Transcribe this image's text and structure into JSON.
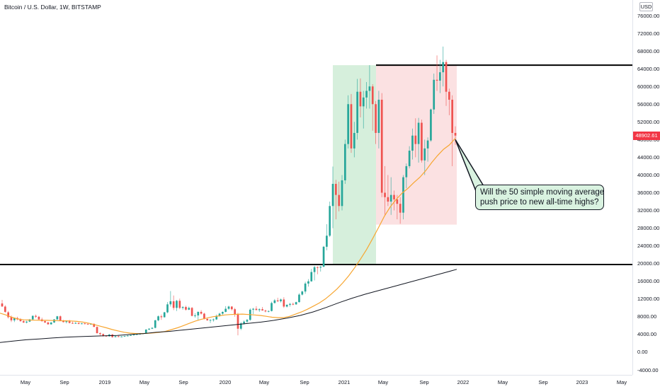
{
  "header": {
    "title": "Bitcoin / U.S. Dollar, 1W, BITSTAMP",
    "currency": "USD"
  },
  "chart_data": {
    "type": "candlestick",
    "title": "Bitcoin / U.S. Dollar, 1W, BITSTAMP",
    "ylim": [
      -4000,
      76000
    ],
    "y_ticks": [
      "76000.00",
      "72000.00",
      "68000.00",
      "64000.00",
      "60000.00",
      "56000.00",
      "52000.00",
      "48000.00",
      "44000.00",
      "40000.00",
      "36000.00",
      "32000.00",
      "28000.00",
      "24000.00",
      "20000.00",
      "16000.00",
      "12000.00",
      "8000.00",
      "4000.00",
      "0.00",
      "-4000.00"
    ],
    "x_ticks": [
      "May",
      "Sep",
      "2019",
      "May",
      "Sep",
      "2020",
      "May",
      "Sep",
      "2021",
      "May",
      "Sep",
      "2022",
      "May",
      "Sep",
      "2023",
      "May"
    ],
    "last_price": "48902.61",
    "colors": {
      "up": "#26a69a",
      "down": "#ef5350",
      "sma50": "#f7a631",
      "sma200": "#131722",
      "green_box": "#d6efdc",
      "red_box": "#fbe1e2"
    },
    "horizontal_levels": [
      64800,
      19800
    ],
    "series": [
      {
        "kind": "ohlc",
        "values": [
          [
            11000,
            11800,
            10300,
            10300
          ],
          [
            10300,
            10600,
            8900,
            9100
          ],
          [
            9000,
            9300,
            7600,
            7900
          ],
          [
            7900,
            8300,
            6800,
            7200
          ],
          [
            7200,
            7800,
            6800,
            7700
          ],
          [
            7700,
            8000,
            7200,
            7400
          ],
          [
            7400,
            7700,
            6900,
            7000
          ],
          [
            7000,
            7300,
            6600,
            6700
          ],
          [
            6700,
            7100,
            6500,
            6900
          ],
          [
            6900,
            7500,
            6800,
            7400
          ],
          [
            7400,
            8300,
            7300,
            8200
          ],
          [
            8200,
            8500,
            7700,
            8000
          ],
          [
            8000,
            8200,
            7300,
            7400
          ],
          [
            7400,
            7800,
            6900,
            7000
          ],
          [
            7000,
            7200,
            6600,
            6700
          ],
          [
            6700,
            6900,
            6200,
            6300
          ],
          [
            6300,
            6800,
            6200,
            6700
          ],
          [
            6700,
            7500,
            6600,
            7400
          ],
          [
            7400,
            8200,
            7300,
            8100
          ],
          [
            8100,
            8300,
            7000,
            7100
          ],
          [
            7100,
            7300,
            6700,
            6800
          ],
          [
            6800,
            7200,
            6500,
            7000
          ],
          [
            7000,
            7300,
            6500,
            6600
          ],
          [
            6600,
            6900,
            6400,
            6500
          ],
          [
            6500,
            6800,
            6400,
            6600
          ],
          [
            6600,
            6700,
            6300,
            6400
          ],
          [
            6400,
            6600,
            6300,
            6500
          ],
          [
            6500,
            6600,
            6300,
            6400
          ],
          [
            6400,
            6500,
            6200,
            6300
          ],
          [
            6300,
            6500,
            6200,
            6400
          ],
          [
            6400,
            6500,
            5800,
            5700
          ],
          [
            5700,
            5800,
            4200,
            4300
          ],
          [
            4300,
            4500,
            3600,
            4100
          ],
          [
            4100,
            4200,
            3500,
            3700
          ],
          [
            3700,
            3800,
            3500,
            3600
          ],
          [
            3600,
            4100,
            3500,
            4000
          ],
          [
            4000,
            4100,
            3300,
            3400
          ],
          [
            3400,
            3700,
            3400,
            3600
          ],
          [
            3600,
            3700,
            3400,
            3500
          ],
          [
            3500,
            3600,
            3400,
            3550
          ],
          [
            3550,
            3700,
            3500,
            3650
          ],
          [
            3650,
            3800,
            3600,
            3750
          ],
          [
            3750,
            3900,
            3700,
            3850
          ],
          [
            3850,
            4000,
            3800,
            3950
          ],
          [
            3950,
            4100,
            3900,
            4050
          ],
          [
            4050,
            4200,
            4000,
            4150
          ],
          [
            4150,
            4300,
            4100,
            4250
          ],
          [
            4250,
            5200,
            4200,
            5100
          ],
          [
            5100,
            5400,
            5000,
            5300
          ],
          [
            5300,
            5600,
            5200,
            5500
          ],
          [
            5500,
            7300,
            5400,
            7200
          ],
          [
            7200,
            8300,
            7000,
            8100
          ],
          [
            8100,
            8500,
            7300,
            7900
          ],
          [
            7900,
            9100,
            7800,
            9000
          ],
          [
            9000,
            11300,
            8800,
            10800
          ],
          [
            10800,
            13800,
            10300,
            11500
          ],
          [
            11500,
            12800,
            9500,
            10000
          ],
          [
            10000,
            11800,
            9300,
            11600
          ],
          [
            11600,
            12100,
            9700,
            10000
          ],
          [
            10000,
            10400,
            9600,
            10200
          ],
          [
            10200,
            10500,
            9400,
            9600
          ],
          [
            9600,
            10300,
            9500,
            10000
          ],
          [
            10000,
            10200,
            8100,
            8200
          ],
          [
            8200,
            8800,
            7800,
            8300
          ],
          [
            8300,
            9200,
            7300,
            9100
          ],
          [
            9100,
            9500,
            8500,
            8700
          ],
          [
            8700,
            8900,
            7400,
            7500
          ],
          [
            7500,
            7800,
            7100,
            7200
          ],
          [
            7200,
            7400,
            6600,
            7300
          ],
          [
            7300,
            7600,
            6900,
            7400
          ],
          [
            7400,
            8500,
            7300,
            8200
          ],
          [
            8200,
            8900,
            8000,
            8700
          ],
          [
            8700,
            9200,
            8400,
            9100
          ],
          [
            9100,
            10400,
            9000,
            9800
          ],
          [
            9800,
            10500,
            9600,
            10300
          ],
          [
            10300,
            10400,
            9400,
            9700
          ],
          [
            9700,
            10000,
            8000,
            8500
          ],
          [
            8500,
            8900,
            3800,
            5300
          ],
          [
            5300,
            6800,
            5000,
            6500
          ],
          [
            6500,
            7200,
            6200,
            6900
          ],
          [
            6900,
            7500,
            6600,
            7300
          ],
          [
            7300,
            9900,
            7100,
            9600
          ],
          [
            9600,
            10000,
            8600,
            9800
          ],
          [
            9800,
            10400,
            9500,
            9500
          ],
          [
            9500,
            9900,
            9100,
            9700
          ],
          [
            9700,
            10200,
            9500,
            9400
          ],
          [
            9400,
            9600,
            9000,
            9200
          ],
          [
            9200,
            9400,
            9000,
            9300
          ],
          [
            9300,
            11400,
            9200,
            11100
          ],
          [
            11100,
            12000,
            11000,
            11700
          ],
          [
            11700,
            12300,
            11300,
            11500
          ],
          [
            11500,
            12100,
            11200,
            11900
          ],
          [
            11900,
            12400,
            10000,
            10300
          ],
          [
            10300,
            10800,
            10100,
            10700
          ],
          [
            10700,
            11100,
            10300,
            10900
          ],
          [
            10900,
            11200,
            10600,
            10800
          ],
          [
            10800,
            11400,
            10700,
            11300
          ],
          [
            11300,
            13300,
            11200,
            13000
          ],
          [
            13000,
            13900,
            12800,
            13700
          ],
          [
            13700,
            15900,
            13200,
            15500
          ],
          [
            15500,
            16500,
            14800,
            16000
          ],
          [
            16000,
            18800,
            15900,
            18100
          ],
          [
            18100,
            19500,
            16200,
            19200
          ],
          [
            19200,
            19400,
            17600,
            19100
          ],
          [
            19100,
            19500,
            18200,
            19300
          ],
          [
            19300,
            24000,
            19200,
            23800
          ],
          [
            23800,
            28900,
            23000,
            26300
          ],
          [
            26300,
            34000,
            26000,
            33000
          ],
          [
            33000,
            41900,
            28000,
            38000
          ],
          [
            38000,
            38900,
            30000,
            35500
          ],
          [
            35500,
            38500,
            31800,
            33000
          ],
          [
            33000,
            40000,
            32000,
            38800
          ],
          [
            38800,
            48000,
            38000,
            47000
          ],
          [
            47000,
            58000,
            46000,
            56000
          ],
          [
            56000,
            58300,
            45000,
            46000
          ],
          [
            46000,
            52000,
            44000,
            49500
          ],
          [
            49500,
            61700,
            48000,
            58800
          ],
          [
            58800,
            61800,
            53000,
            55500
          ],
          [
            55500,
            59000,
            50500,
            57500
          ],
          [
            57500,
            61000,
            55000,
            59000
          ],
          [
            59000,
            64800,
            55000,
            60000
          ],
          [
            60000,
            60500,
            50000,
            56000
          ],
          [
            56000,
            56700,
            47000,
            49500
          ],
          [
            49500,
            59000,
            46000,
            57000
          ],
          [
            57000,
            58500,
            35000,
            36000
          ],
          [
            36000,
            42000,
            31000,
            35000
          ],
          [
            35000,
            40000,
            33000,
            34000
          ],
          [
            34000,
            39500,
            31000,
            35500
          ],
          [
            35500,
            36500,
            32000,
            34500
          ],
          [
            34500,
            35500,
            30000,
            33500
          ],
          [
            33500,
            35000,
            29000,
            31500
          ],
          [
            31500,
            40000,
            30000,
            39500
          ],
          [
            39500,
            42600,
            37000,
            42000
          ],
          [
            42000,
            46500,
            41500,
            45500
          ],
          [
            45500,
            50500,
            43500,
            48900
          ],
          [
            48900,
            52800,
            44000,
            47000
          ],
          [
            47000,
            52900,
            42800,
            51800
          ],
          [
            51800,
            52500,
            42800,
            43300
          ],
          [
            43300,
            48000,
            40000,
            46000
          ],
          [
            46000,
            48500,
            43000,
            47800
          ],
          [
            47800,
            55000,
            47500,
            54800
          ],
          [
            54800,
            62900,
            53800,
            61500
          ],
          [
            61500,
            67000,
            59000,
            61300
          ],
          [
            61300,
            66000,
            58500,
            63200
          ],
          [
            63200,
            69000,
            60000,
            65500
          ],
          [
            65500,
            66000,
            55600,
            58800
          ],
          [
            58800,
            59500,
            53500,
            57000
          ],
          [
            57000,
            58000,
            42000,
            49500
          ],
          [
            49500,
            51000,
            46800,
            48902
          ]
        ]
      },
      {
        "kind": "sma50",
        "name": "",
        "values": [
          8800,
          8400,
          7900,
          7500,
          7300,
          7250,
          7220,
          7200,
          7200,
          7150,
          7100,
          7080,
          7050,
          6950,
          6800,
          6550,
          6200,
          5850,
          5500,
          5100,
          4800,
          4500,
          4300,
          4200,
          4200,
          4250,
          4350,
          4500,
          4700,
          5100,
          5500,
          6000,
          6500,
          7000,
          7400,
          7700,
          8000,
          8200,
          8400,
          8500,
          8550,
          8600,
          8500,
          8400,
          8300,
          8100,
          7900,
          7800,
          7800,
          8100,
          8600,
          9100,
          9700,
          10400,
          11100,
          12000,
          13100,
          14300,
          15700,
          17300,
          19100,
          21100,
          23200,
          25600,
          28100,
          30700,
          32800,
          34500,
          35900,
          37000,
          38300,
          39500,
          41000,
          42800,
          44400,
          45800,
          46800,
          48300
        ]
      },
      {
        "kind": "sma200",
        "name": "",
        "values": [
          2200,
          2500,
          2800,
          3000,
          3200,
          3400,
          3500,
          3600,
          3700,
          3800,
          4000,
          4200,
          4500,
          4700,
          5000,
          5300,
          5600,
          5900,
          6200,
          6500,
          6800,
          7200,
          7700,
          8300,
          9100,
          10100,
          11200,
          12200,
          13100,
          13900,
          14700,
          15500,
          16300,
          17100,
          17900,
          18700
        ]
      }
    ]
  },
  "callout": {
    "line1": "Will the 50 simple moving average",
    "line2": "push price to new all-time highs?"
  }
}
